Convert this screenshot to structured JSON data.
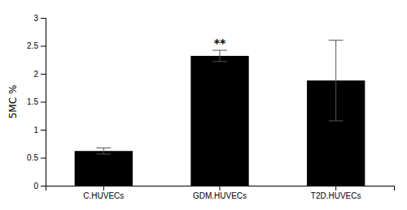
{
  "chart_data": {
    "type": "bar",
    "categories": [
      "C.HUVECs",
      "GDM.HUVECs",
      "T2D.HUVECs"
    ],
    "values": [
      0.62,
      2.32,
      1.88
    ],
    "errors": [
      0.055,
      0.1,
      0.72
    ],
    "color": "#000000",
    "ylabel": "5MC %",
    "ylim": [
      0,
      3
    ],
    "yticks": [
      0,
      0.5,
      1,
      1.5,
      2,
      2.5,
      3
    ],
    "grid": false,
    "annotations": [
      {
        "text": "**",
        "category": "GDM.HUVECs"
      }
    ]
  }
}
